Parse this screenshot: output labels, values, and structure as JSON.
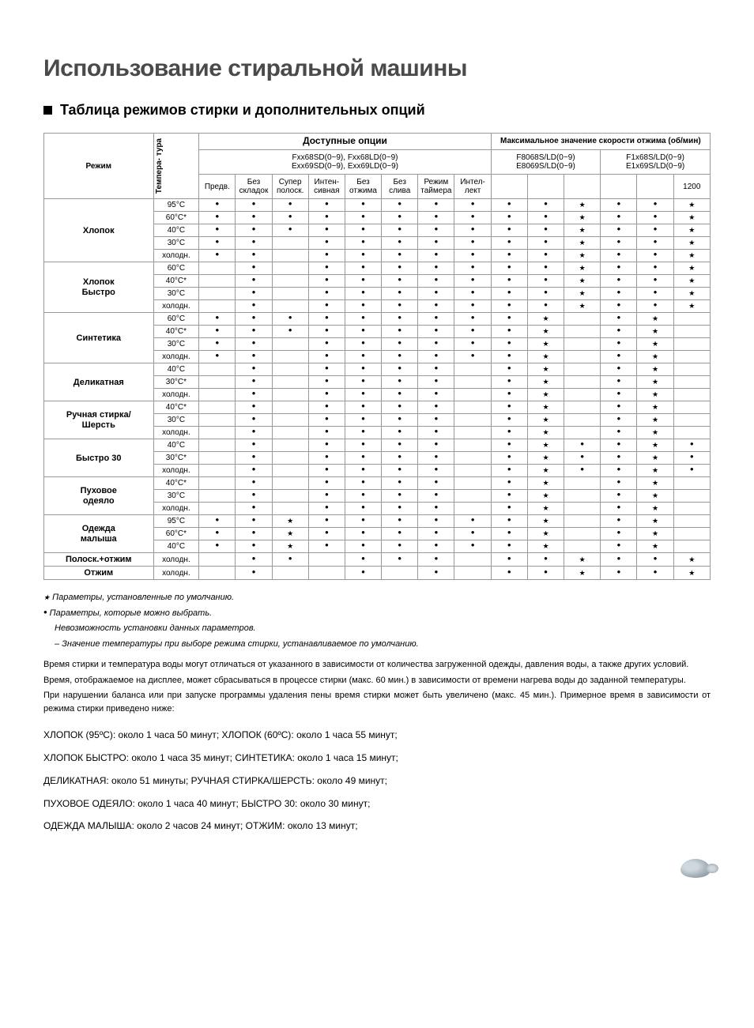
{
  "title": "Использование стиральной машины",
  "subtitle": "Таблица режимов стирки и дополнительных опций",
  "head": {
    "mode": "Режим",
    "temp": "Темпера-\nтура ",
    "opts_title": "Доступные опции",
    "opts_sub": "Fxx68SD(0~9), Fxx68LD(0~9)\nExx69SD(0~9), Exx69LD(0~9)",
    "spin_title": "Максимальное значение скорости отжима (об/мин)",
    "spin_a": "F8068S/LD(0~9)\nE8069S/LD(0~9)",
    "spin_b": "F1x68S/LD(0~9)\nE1x69S/LD(0~9)",
    "c1200": "1200",
    "o1": "Предв.",
    "o2": "Без\nскладок",
    "o3": "Супер\nполоск.",
    "o4": "Интен-\nсивная",
    "o5": "Без\nотжима",
    "o6": "Без\nслива",
    "o7": "Режим\nтаймера",
    "o8": "Интел-\nлект"
  },
  "modes": [
    {
      "name": "Хлопок",
      "rows": [
        {
          "t": "95°C",
          "c": [
            "d",
            "d",
            "d",
            "d",
            "d",
            "d",
            "d",
            "d",
            "d",
            "d",
            "s",
            "d",
            "d",
            "s"
          ]
        },
        {
          "t": "60°C*",
          "c": [
            "d",
            "d",
            "d",
            "d",
            "d",
            "d",
            "d",
            "d",
            "d",
            "d",
            "s",
            "d",
            "d",
            "s"
          ]
        },
        {
          "t": "40°C",
          "c": [
            "d",
            "d",
            "d",
            "d",
            "d",
            "d",
            "d",
            "d",
            "d",
            "d",
            "s",
            "d",
            "d",
            "s"
          ]
        },
        {
          "t": "30°C",
          "c": [
            "d",
            "d",
            "",
            "d",
            "d",
            "d",
            "d",
            "d",
            "d",
            "d",
            "s",
            "d",
            "d",
            "s"
          ]
        },
        {
          "t": "холодн.",
          "c": [
            "d",
            "d",
            "",
            "d",
            "d",
            "d",
            "d",
            "d",
            "d",
            "d",
            "s",
            "d",
            "d",
            "s"
          ]
        }
      ]
    },
    {
      "name": "Хлопок\nБыстро",
      "rows": [
        {
          "t": "60°C",
          "c": [
            "",
            "d",
            "",
            "d",
            "d",
            "d",
            "d",
            "d",
            "d",
            "d",
            "s",
            "d",
            "d",
            "s"
          ]
        },
        {
          "t": "40°C*",
          "c": [
            "",
            "d",
            "",
            "d",
            "d",
            "d",
            "d",
            "d",
            "d",
            "d",
            "s",
            "d",
            "d",
            "s"
          ]
        },
        {
          "t": "30°C",
          "c": [
            "",
            "d",
            "",
            "d",
            "d",
            "d",
            "d",
            "d",
            "d",
            "d",
            "s",
            "d",
            "d",
            "s"
          ]
        },
        {
          "t": "холодн.",
          "c": [
            "",
            "d",
            "",
            "d",
            "d",
            "d",
            "d",
            "d",
            "d",
            "d",
            "s",
            "d",
            "d",
            "s"
          ]
        }
      ]
    },
    {
      "name": "Синтетика",
      "rows": [
        {
          "t": "60°C",
          "c": [
            "d",
            "d",
            "d",
            "d",
            "d",
            "d",
            "d",
            "d",
            "d",
            "s",
            "",
            "d",
            "s",
            ""
          ]
        },
        {
          "t": "40°C*",
          "c": [
            "d",
            "d",
            "d",
            "d",
            "d",
            "d",
            "d",
            "d",
            "d",
            "s",
            "",
            "d",
            "s",
            ""
          ]
        },
        {
          "t": "30°C",
          "c": [
            "d",
            "d",
            "",
            "d",
            "d",
            "d",
            "d",
            "d",
            "d",
            "s",
            "",
            "d",
            "s",
            ""
          ]
        },
        {
          "t": "холодн.",
          "c": [
            "d",
            "d",
            "",
            "d",
            "d",
            "d",
            "d",
            "d",
            "d",
            "s",
            "",
            "d",
            "s",
            ""
          ]
        }
      ]
    },
    {
      "name": "Деликатная",
      "rows": [
        {
          "t": "40°C",
          "c": [
            "",
            "d",
            "",
            "d",
            "d",
            "d",
            "d",
            "",
            "d",
            "s",
            "",
            "d",
            "s",
            ""
          ]
        },
        {
          "t": "30°C*",
          "c": [
            "",
            "d",
            "",
            "d",
            "d",
            "d",
            "d",
            "",
            "d",
            "s",
            "",
            "d",
            "s",
            ""
          ]
        },
        {
          "t": "холодн.",
          "c": [
            "",
            "d",
            "",
            "d",
            "d",
            "d",
            "d",
            "",
            "d",
            "s",
            "",
            "d",
            "s",
            ""
          ]
        }
      ]
    },
    {
      "name": "Ручная стирка/\nШерсть",
      "rows": [
        {
          "t": "40°C*",
          "c": [
            "",
            "d",
            "",
            "d",
            "d",
            "d",
            "d",
            "",
            "d",
            "s",
            "",
            "d",
            "s",
            ""
          ]
        },
        {
          "t": "30°C",
          "c": [
            "",
            "d",
            "",
            "d",
            "d",
            "d",
            "d",
            "",
            "d",
            "s",
            "",
            "d",
            "s",
            ""
          ]
        },
        {
          "t": "холодн.",
          "c": [
            "",
            "d",
            "",
            "d",
            "d",
            "d",
            "d",
            "",
            "d",
            "s",
            "",
            "d",
            "s",
            ""
          ]
        }
      ]
    },
    {
      "name": "Быстро 30",
      "rows": [
        {
          "t": "40°C",
          "c": [
            "",
            "d",
            "",
            "d",
            "d",
            "d",
            "d",
            "",
            "d",
            "s",
            "d",
            "d",
            "s",
            "d"
          ]
        },
        {
          "t": "30°C*",
          "c": [
            "",
            "d",
            "",
            "d",
            "d",
            "d",
            "d",
            "",
            "d",
            "s",
            "d",
            "d",
            "s",
            "d"
          ]
        },
        {
          "t": "холодн.",
          "c": [
            "",
            "d",
            "",
            "d",
            "d",
            "d",
            "d",
            "",
            "d",
            "s",
            "d",
            "d",
            "s",
            "d"
          ]
        }
      ]
    },
    {
      "name": "Пуховое\nодеяло",
      "rows": [
        {
          "t": "40°C*",
          "c": [
            "",
            "d",
            "",
            "d",
            "d",
            "d",
            "d",
            "",
            "d",
            "s",
            "",
            "d",
            "s",
            ""
          ]
        },
        {
          "t": "30°C",
          "c": [
            "",
            "d",
            "",
            "d",
            "d",
            "d",
            "d",
            "",
            "d",
            "s",
            "",
            "d",
            "s",
            ""
          ]
        },
        {
          "t": "холодн.",
          "c": [
            "",
            "d",
            "",
            "d",
            "d",
            "d",
            "d",
            "",
            "d",
            "s",
            "",
            "d",
            "s",
            ""
          ]
        }
      ]
    },
    {
      "name": "Одежда\nмалыша",
      "rows": [
        {
          "t": "95°C",
          "c": [
            "d",
            "d",
            "s",
            "d",
            "d",
            "d",
            "d",
            "d",
            "d",
            "s",
            "",
            "d",
            "s",
            ""
          ]
        },
        {
          "t": "60°C*",
          "c": [
            "d",
            "d",
            "s",
            "d",
            "d",
            "d",
            "d",
            "d",
            "d",
            "s",
            "",
            "d",
            "s",
            ""
          ]
        },
        {
          "t": "40°C",
          "c": [
            "d",
            "d",
            "s",
            "d",
            "d",
            "d",
            "d",
            "d",
            "d",
            "s",
            "",
            "d",
            "s",
            ""
          ]
        }
      ]
    },
    {
      "name": "Полоск.+отжим",
      "rows": [
        {
          "t": "холодн.",
          "c": [
            "",
            "d",
            "d",
            "",
            "d",
            "d",
            "d",
            "",
            "d",
            "d",
            "s",
            "d",
            "d",
            "s"
          ]
        }
      ]
    },
    {
      "name": "Отжим",
      "rows": [
        {
          "t": "холодн.",
          "c": [
            "",
            "d",
            "",
            "",
            "d",
            "",
            "d",
            "",
            "d",
            "d",
            "s",
            "d",
            "d",
            "s"
          ]
        }
      ]
    }
  ],
  "legend": {
    "star": "Параметры, установленные по умолчанию.",
    "dot": "Параметры, которые можно выбрать.",
    "blank": "Невозможность установки данных параметров.",
    "dash": "– Значение температуры при выборе режима стирки, устанавливаемое по умолчанию."
  },
  "body": {
    "p1": "Время стирки и температура воды могут отличаться от указанного в зависимости от количества загруженной одежды, давления воды, а также других условий.",
    "p2": "Время, отображаемое на дисплее, может сбрасываться в процессе стирки (макс. 60 мин.) в зависимости от времени нагрева воды до заданной температуры.",
    "p3": "При нарушении баланса или при запуске программы удаления пены время стирки может быть увеличено (макс. 45 мин.). Примерное время в зависимости от режима стирки приведено ниже:"
  },
  "times": [
    "ХЛОПОК (95ºC): около 1 часа 50 минут; ХЛОПОК (60ºC): около 1 часа 55 минут;",
    "ХЛОПОК БЫСТРО: около 1 часа 35 минут; СИНТЕТИКА: около 1 часа 15 минут;",
    "ДЕЛИКАТНАЯ: около 51 минуты; РУЧНАЯ СТИРКА/ШЕРСТЬ: около 49 минут;",
    "ПУХОВОЕ ОДЕЯЛО: около 1 часа 40 минут; БЫСТРО 30: около 30 минут;",
    "ОДЕЖДА МАЛЫША: около 2 часов 24 минут; ОТЖИМ: около 13 минут;"
  ]
}
